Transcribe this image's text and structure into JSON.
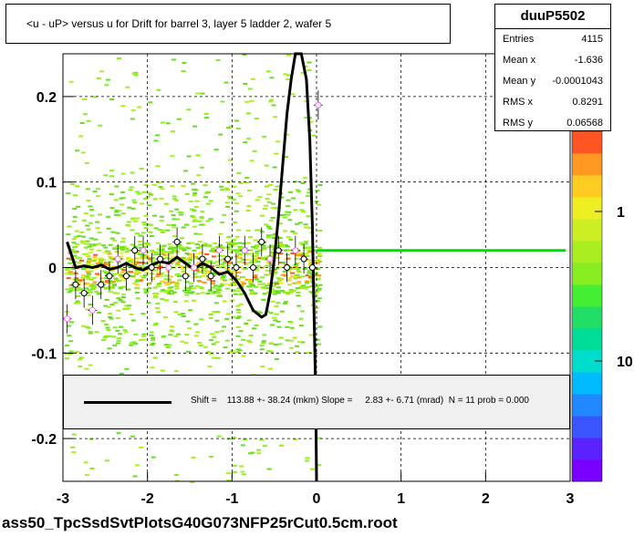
{
  "title": "<u - uP>       versus   u for Drift for barrel 3, layer 5 ladder 2, wafer 5",
  "footer": "ass50_TpcSsdSvtPlotsG40G073NFP25rCut0.5cm.root",
  "stats": {
    "name": "duuP5502",
    "rows": [
      {
        "label": "Entries",
        "value": "4115"
      },
      {
        "label": "Mean x",
        "value": "-1.636"
      },
      {
        "label": "Mean y",
        "value": "-0.0001043"
      },
      {
        "label": "RMS x",
        "value": "0.8291"
      },
      {
        "label": "RMS y",
        "value": "0.06568"
      }
    ]
  },
  "fit_legend": "Shift =    113.88 +- 38.24 (mkm) Slope =     2.83 +- 6.71 (mrad)  N = 11 prob = 0.000",
  "colors": {
    "fit_curve": "#000000",
    "flat_line": "#00dd00",
    "profile_marker": "#ff66ff",
    "grid": "#000000"
  },
  "chart_data": {
    "type": "heatmap",
    "title": "<u - uP>       versus   u for Drift for barrel 3, layer 5 ladder 2, wafer 5",
    "xlim": [
      -3,
      3
    ],
    "ylim": [
      -0.25,
      0.25
    ],
    "x_ticks": [
      "-3",
      "-2",
      "-1",
      "0",
      "1",
      "2",
      "3"
    ],
    "y_ticks": [
      "-0.2",
      "-0.1",
      "0",
      "0.1",
      "0.2"
    ],
    "z_scale": "log",
    "z_ticks": [
      "1",
      "10"
    ],
    "grid": true,
    "profile_points": [
      {
        "x": -2.95,
        "y": -0.06
      },
      {
        "x": -2.85,
        "y": -0.02
      },
      {
        "x": -2.75,
        "y": -0.03
      },
      {
        "x": -2.65,
        "y": -0.05
      },
      {
        "x": -2.55,
        "y": -0.02
      },
      {
        "x": -2.45,
        "y": -0.01
      },
      {
        "x": -2.35,
        "y": 0.01
      },
      {
        "x": -2.25,
        "y": -0.01
      },
      {
        "x": -2.15,
        "y": 0.02
      },
      {
        "x": -2.05,
        "y": 0.02
      },
      {
        "x": -1.95,
        "y": 0.0
      },
      {
        "x": -1.85,
        "y": 0.01
      },
      {
        "x": -1.75,
        "y": 0.0
      },
      {
        "x": -1.65,
        "y": 0.03
      },
      {
        "x": -1.55,
        "y": -0.01
      },
      {
        "x": -1.45,
        "y": 0.0
      },
      {
        "x": -1.35,
        "y": 0.01
      },
      {
        "x": -1.25,
        "y": -0.01
      },
      {
        "x": -1.15,
        "y": 0.02
      },
      {
        "x": -1.05,
        "y": 0.01
      },
      {
        "x": -0.95,
        "y": 0.0
      },
      {
        "x": -0.85,
        "y": 0.02
      },
      {
        "x": -0.75,
        "y": 0.0
      },
      {
        "x": -0.65,
        "y": 0.03
      },
      {
        "x": -0.55,
        "y": 0.01
      },
      {
        "x": -0.45,
        "y": 0.02
      },
      {
        "x": -0.35,
        "y": 0.0
      },
      {
        "x": -0.25,
        "y": 0.02
      },
      {
        "x": -0.15,
        "y": 0.01
      },
      {
        "x": -0.05,
        "y": 0.0
      },
      {
        "x": 0.02,
        "y": 0.19
      }
    ],
    "flat_line": {
      "x": [
        0.0,
        2.95
      ],
      "y": 0.02
    },
    "fit_curve": {
      "x": [
        -2.95,
        -2.85,
        -2.75,
        -2.65,
        -2.55,
        -2.45,
        -2.35,
        -2.25,
        -2.15,
        -2.05,
        -1.95,
        -1.85,
        -1.75,
        -1.65,
        -1.55,
        -1.45,
        -1.35,
        -1.25,
        -1.15,
        -1.05,
        -0.95,
        -0.85,
        -0.75,
        -0.65,
        -0.6,
        -0.55,
        -0.5,
        -0.45,
        -0.4,
        -0.35,
        -0.3,
        -0.25,
        -0.22,
        -0.18,
        -0.12,
        -0.08,
        -0.05,
        -0.03,
        -0.01,
        0.0
      ],
      "y": [
        0.03,
        0.0,
        0.002,
        0.0,
        0.003,
        -0.002,
        0.0,
        0.005,
        0.0,
        -0.003,
        0.003,
        0.007,
        0.005,
        0.012,
        0.005,
        -0.002,
        0.005,
        0.0,
        -0.008,
        -0.005,
        -0.015,
        -0.03,
        -0.05,
        -0.058,
        -0.055,
        -0.03,
        0.01,
        0.06,
        0.12,
        0.18,
        0.22,
        0.25,
        0.25,
        0.25,
        0.22,
        0.15,
        0.05,
        -0.05,
        -0.15,
        -0.25
      ]
    }
  }
}
